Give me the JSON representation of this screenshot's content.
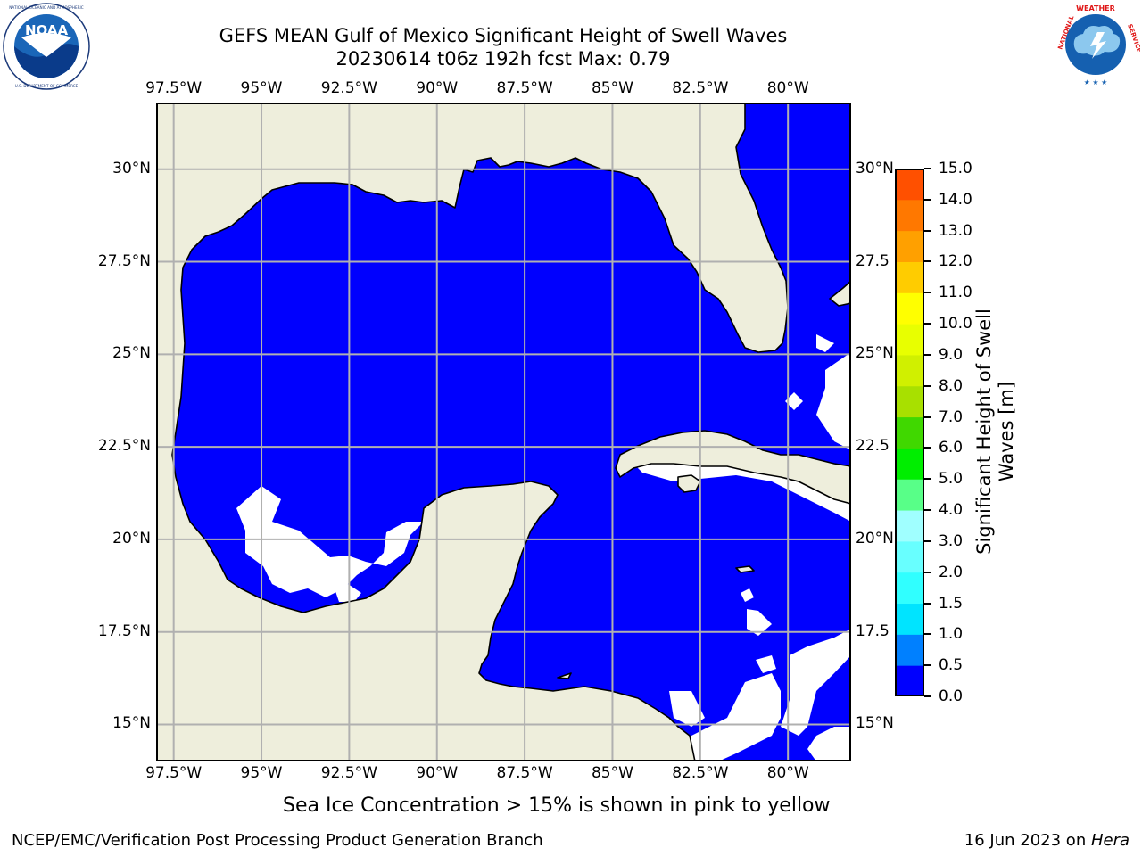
{
  "title": {
    "line1": "GEFS MEAN Gulf of Mexico Significant Height of Swell Waves",
    "line2": "20230614 t06z 192h fcst   Max: 0.79"
  },
  "logos": {
    "noaa": {
      "text": "NOAA",
      "ring_text": "NATIONAL OCEANIC AND ATMOSPHERIC ADMINISTRATION · U.S. DEPARTMENT OF COMMERCE",
      "icon": "noaa-logo"
    },
    "nws": {
      "ring_text": "NATIONAL WEATHER SERVICE",
      "icon": "nws-logo"
    }
  },
  "map": {
    "lon_range": [
      -98.0,
      -78.2
    ],
    "lat_range": [
      14.0,
      31.8
    ],
    "lon_labels": [
      "97.5°W",
      "95°W",
      "92.5°W",
      "90°W",
      "87.5°W",
      "85°W",
      "82.5°W",
      "80°W"
    ],
    "lat_labels_left": [
      "30°N",
      "27.5°N",
      "25°N",
      "22.5°N",
      "20°N",
      "17.5°N",
      "15°N"
    ],
    "lat_labels_right": [
      "30°N",
      "27.5",
      "25°N",
      "22.5",
      "20°N",
      "17.5",
      "15°N"
    ],
    "grid": true,
    "colors": {
      "land": "#eeeedc",
      "water_0_to_0_5": "#0000fe",
      "water_0_5_to_1": "#0080ff",
      "grid": "#b0b0b0",
      "coast": "#000000"
    }
  },
  "colorbar": {
    "label": "Significant Height of Swell Waves [m]",
    "label_line1": "Significant Height of Swell",
    "label_line2": "Waves [m]",
    "ticks": [
      "0.0",
      "0.5",
      "1.0",
      "1.5",
      "2.0",
      "3.0",
      "4.0",
      "5.0",
      "6.0",
      "7.0",
      "8.0",
      "9.0",
      "10.0",
      "11.0",
      "12.0",
      "13.0",
      "14.0",
      "15.0"
    ],
    "colors": [
      "#0000fe",
      "#0080ff",
      "#00e4ff",
      "#30ffff",
      "#68ffff",
      "#a0ffff",
      "#58ff88",
      "#00ee00",
      "#40d800",
      "#a8e000",
      "#d0f000",
      "#e8ff00",
      "#ffff00",
      "#ffcc00",
      "#ffa000",
      "#ff7800",
      "#ff5000",
      "#ff2000"
    ]
  },
  "note": "Sea Ice Concentration > 15% is shown in pink to yellow",
  "footer": {
    "left": "NCEP/EMC/Verification Post Processing Product Generation Branch",
    "date": "16 Jun 2023 on ",
    "machine": "Hera"
  }
}
